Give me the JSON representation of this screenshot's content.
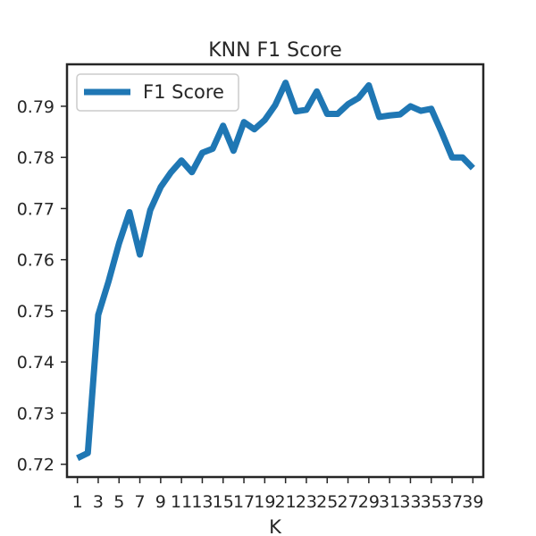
{
  "chart_data": {
    "type": "line",
    "title": "KNN F1 Score",
    "xlabel": "K",
    "ylabel": "",
    "xlim": [
      0,
      40
    ],
    "ylim": [
      0.7175,
      0.7982
    ],
    "xticks": [
      1,
      3,
      5,
      7,
      9,
      11,
      13,
      15,
      17,
      19,
      21,
      23,
      25,
      27,
      29,
      31,
      33,
      35,
      37,
      39
    ],
    "yticks": [
      0.72,
      0.73,
      0.74,
      0.75,
      0.76,
      0.77,
      0.78,
      0.79
    ],
    "ytick_labels": [
      "0.72",
      "0.73",
      "0.74",
      "0.75",
      "0.76",
      "0.77",
      "0.78",
      "0.79"
    ],
    "grid": false,
    "legend": {
      "position": "top-left",
      "entries": [
        "F1 Score"
      ]
    },
    "series": [
      {
        "name": "F1 Score",
        "color": "#1f77b4",
        "x": [
          1,
          2,
          3,
          4,
          5,
          6,
          7,
          8,
          9,
          10,
          11,
          12,
          13,
          14,
          15,
          16,
          17,
          18,
          19,
          20,
          21,
          22,
          23,
          24,
          25,
          26,
          27,
          28,
          29,
          30,
          31,
          32,
          33,
          34,
          35,
          36,
          37,
          38,
          39
        ],
        "values": [
          0.7212,
          0.7222,
          0.7492,
          0.7558,
          0.7632,
          0.7693,
          0.761,
          0.7697,
          0.7742,
          0.7771,
          0.7794,
          0.7771,
          0.7809,
          0.7817,
          0.7862,
          0.7813,
          0.7869,
          0.7855,
          0.7873,
          0.7902,
          0.7946,
          0.789,
          0.7893,
          0.7929,
          0.7885,
          0.7885,
          0.7904,
          0.7916,
          0.7941,
          0.7879,
          0.7882,
          0.7884,
          0.79,
          0.7891,
          0.7895,
          0.7849,
          0.78,
          0.78,
          0.7779
        ]
      }
    ]
  }
}
